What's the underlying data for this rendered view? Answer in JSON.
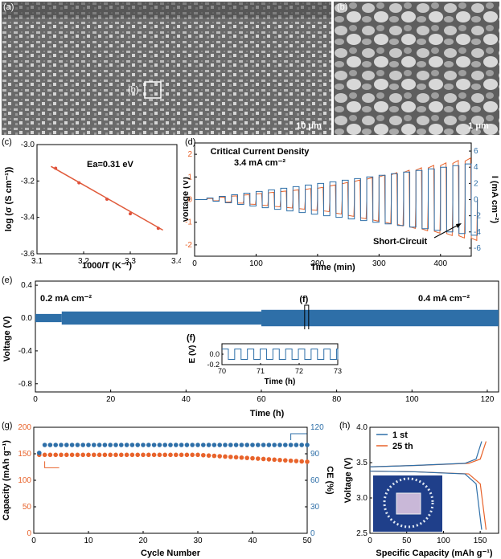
{
  "panels": {
    "a": {
      "label": "(a)",
      "scale": "10 μm",
      "roi_label": "(b)"
    },
    "b": {
      "label": "(b)",
      "scale": "1 μm"
    },
    "c": {
      "label": "(c)",
      "annotation": "Ea=0.31 eV"
    },
    "d": {
      "label": "(d)",
      "annotation_line1": "Critical Current Density",
      "annotation_line2": "3.4 mA cm⁻²",
      "arrow_label": "Short-Circuit"
    },
    "e": {
      "label": "(e)",
      "left_annotation": "0.2 mA cm⁻²",
      "right_annotation": "0.4 mA cm⁻²",
      "marker_label": "(f)"
    },
    "f": {
      "label": "(f)"
    },
    "g": {
      "label": "(g)"
    },
    "h": {
      "label": "(h)"
    }
  },
  "colors": {
    "blue": "#2E6FA8",
    "orange": "#E8632B",
    "red_line": "#E05A3A",
    "red_point": "#E0523C",
    "sem_bg": "#6f6f6f"
  },
  "chart_data": [
    {
      "id": "c",
      "type": "scatter",
      "x": [
        3.14,
        3.19,
        3.25,
        3.3,
        3.36
      ],
      "y": [
        -3.13,
        -3.21,
        -3.3,
        -3.38,
        -3.46
      ],
      "fit": {
        "x": [
          3.13,
          3.37
        ],
        "y": [
          -3.12,
          -3.47
        ]
      },
      "xlabel": "1000/T (K⁻¹)",
      "ylabel": "log (σ (S cm⁻¹))",
      "xlim": [
        3.1,
        3.4
      ],
      "ylim": [
        -3.6,
        -3.0
      ],
      "xticks": [
        "3.1",
        "3.2",
        "3.3",
        "3.4"
      ],
      "yticks": [
        "-3.0",
        "-3.2",
        "-3.4",
        "-3.6"
      ]
    },
    {
      "id": "d",
      "type": "line",
      "series": [
        {
          "name": "Voltage"
        },
        {
          "name": "Current"
        }
      ],
      "steps": [
        0.05,
        0.1,
        0.15,
        0.2,
        0.25,
        0.3,
        0.35,
        0.4,
        0.45,
        0.5,
        0.6,
        0.7,
        0.8,
        0.9,
        1.0,
        1.1,
        1.2,
        1.3,
        1.4,
        1.5,
        1.6,
        1.7
      ],
      "current_steps": [
        0.2,
        0.4,
        0.6,
        0.8,
        1.0,
        1.2,
        1.4,
        1.6,
        1.8,
        2.0,
        2.2,
        2.4,
        2.6,
        2.8,
        3.0,
        3.2,
        3.4,
        3.6,
        3.8,
        4.0,
        4.2,
        4.4
      ],
      "xlabel": "Time (min)",
      "ylabel": "Voltage (V)",
      "y2label": "I (mA cm⁻²)",
      "xlim": [
        0,
        450
      ],
      "ylim": [
        -2.5,
        2.5
      ],
      "y2lim": [
        -7,
        7
      ],
      "xticks": [
        "0",
        "100",
        "200",
        "300",
        "400"
      ],
      "yticks": [
        "2",
        "1",
        "0",
        "-1",
        "-2"
      ],
      "y2ticks": [
        "6",
        "4",
        "2",
        "0",
        "-2",
        "-4",
        "-6"
      ]
    },
    {
      "id": "e",
      "type": "line",
      "series": [
        {
          "name": "Voltage",
          "amplitude_start": 0.05,
          "amplitude_mid": 0.08,
          "amplitude_end": 0.1
        }
      ],
      "xlabel": "Time (h)",
      "ylabel": "Voltage (V)",
      "xlim": [
        0,
        123
      ],
      "ylim": [
        -0.4,
        0.4
      ],
      "xticks": [
        "0",
        "20",
        "40",
        "60",
        "80",
        "100",
        "120"
      ],
      "yticks": [
        "0.4",
        "0.0",
        "-0.4",
        "-0.8"
      ]
    },
    {
      "id": "f",
      "type": "line",
      "series": [
        {
          "name": "E",
          "amplitude": 0.1,
          "period_h": 0.33
        }
      ],
      "xlabel": "Time (h)",
      "ylabel": "E (V)",
      "xlim": [
        70,
        73
      ],
      "ylim": [
        -0.2,
        0.2
      ],
      "xticks": [
        "70",
        "71",
        "72",
        "73"
      ],
      "yticks": [
        "0.0",
        "-0.2"
      ]
    },
    {
      "id": "g",
      "type": "scatter",
      "series": [
        {
          "name": "Capacity",
          "start": 148,
          "end": 135
        },
        {
          "name": "CE",
          "first": 91,
          "rest": 100
        }
      ],
      "xlabel": "Cycle Number",
      "ylabel": "Capacity (mAh g⁻¹)",
      "y2label": "CE (%)",
      "xlim": [
        0,
        50
      ],
      "ylim": [
        0,
        200
      ],
      "y2lim": [
        0,
        120
      ],
      "xticks": [
        "0",
        "10",
        "20",
        "30",
        "40",
        "50"
      ],
      "yticks": [
        "200",
        "150",
        "100",
        "50",
        "0"
      ],
      "y2ticks": [
        "120",
        "90",
        "60",
        "30",
        "0"
      ]
    },
    {
      "id": "h",
      "type": "line",
      "series": [
        {
          "name": "1 st"
        },
        {
          "name": "25 th"
        }
      ],
      "xlabel": "Specific Capacity (mAh g⁻¹)",
      "ylabel": "Voltage (V)",
      "xlim": [
        0,
        175
      ],
      "ylim": [
        2.5,
        4.0
      ],
      "xticks": [
        "0",
        "50",
        "100",
        "150"
      ],
      "yticks": [
        "4.0",
        "3.5",
        "3.0",
        "2.5"
      ]
    }
  ]
}
